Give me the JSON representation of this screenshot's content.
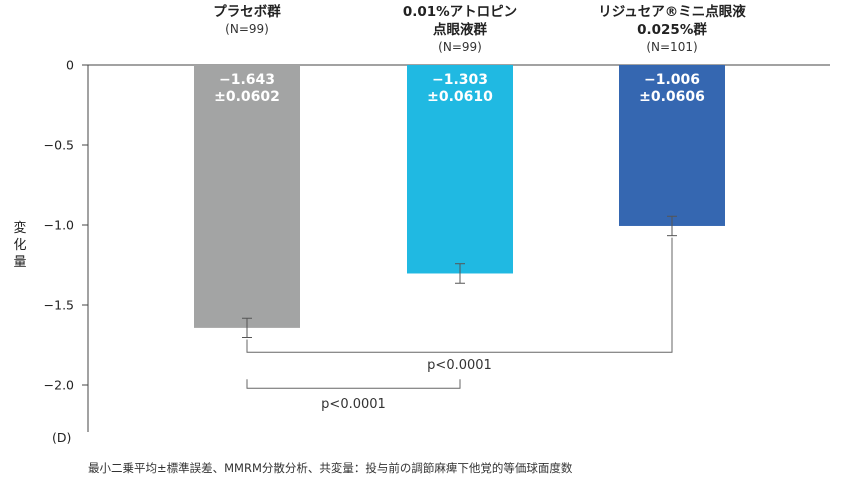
{
  "chart_data": {
    "type": "bar",
    "categories": [
      {
        "line1": "プラセボ群",
        "line2": "",
        "n": "(N=99)"
      },
      {
        "line1": "0.01%アトロピン",
        "line2": "点眼液群",
        "n": "(N=99)"
      },
      {
        "line1": "リジュセア®ミニ点眼液",
        "line2": "0.025%群",
        "n": "(N=101)"
      }
    ],
    "values": [
      -1.643,
      -1.303,
      -1.006
    ],
    "errors": [
      0.0602,
      0.061,
      0.0606
    ],
    "value_labels": [
      "−1.643",
      "−1.303",
      "−1.006"
    ],
    "error_labels": [
      "±0.0602",
      "±0.0610",
      "±0.0606"
    ],
    "colors": [
      "#a3a4a4",
      "#20b9e2",
      "#3567b1"
    ],
    "ylabel": "変化量",
    "unit": "(D)",
    "ylim": [
      -2.2,
      0
    ],
    "yticks": [
      0,
      -0.5,
      -1.0,
      -1.5,
      -2.0
    ],
    "ytick_labels": [
      "0",
      "−0.5",
      "−1.0",
      "−1.5",
      "−2.0"
    ],
    "comparisons": [
      {
        "from": 0,
        "to": 2,
        "label": "p<0.0001",
        "level": -1.795
      },
      {
        "from": 0,
        "to": 1,
        "label": "p<0.0001",
        "level": -2.02
      }
    ],
    "footnote": "最小二乗平均±標準誤差、MMRM分散分析、共変量：投与前の調節麻痺下他覚的等価球面度数"
  }
}
